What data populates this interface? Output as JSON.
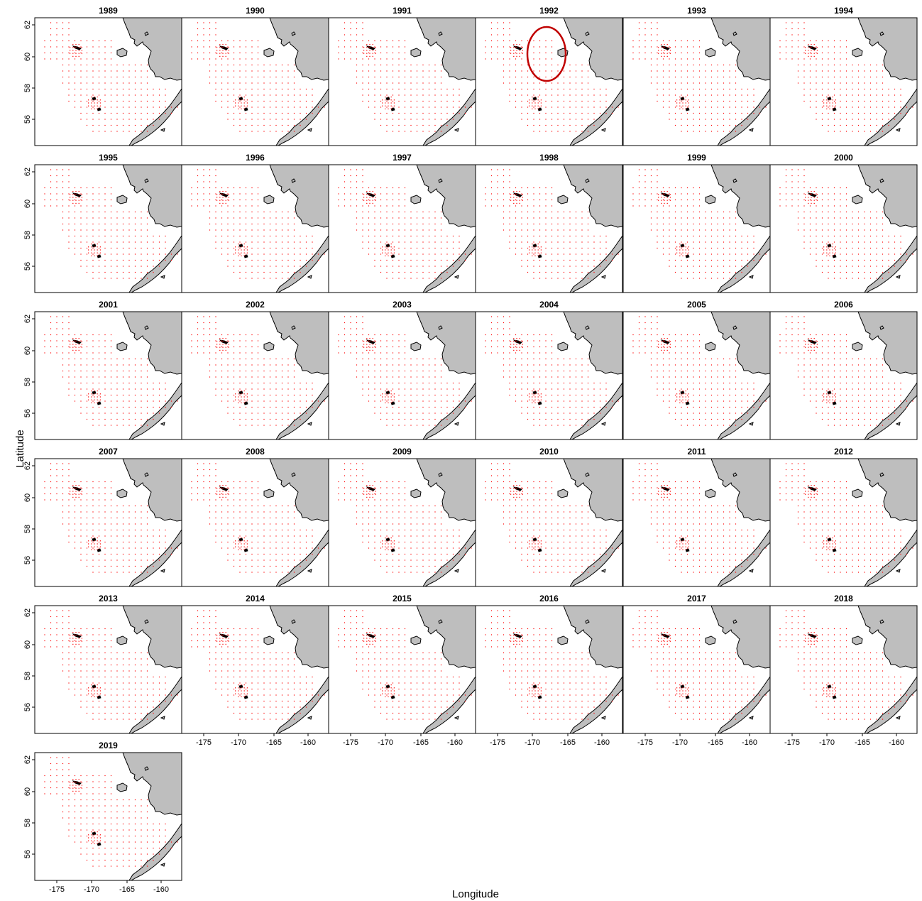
{
  "figure": {
    "x_axis_label": "Longitude",
    "y_axis_label": "Latitude",
    "x_ticks": [
      "-175",
      "-170",
      "-165",
      "-160"
    ],
    "y_ticks": [
      "62",
      "60",
      "58",
      "56"
    ],
    "land_color": "#bebebe",
    "station_color": "#ff0000",
    "highlight_color": "#c00000",
    "panels": [
      {
        "year": "1989"
      },
      {
        "year": "1990"
      },
      {
        "year": "1991"
      },
      {
        "year": "1992",
        "highlight": true
      },
      {
        "year": "1993"
      },
      {
        "year": "1994"
      },
      {
        "year": "1995"
      },
      {
        "year": "1996"
      },
      {
        "year": "1997"
      },
      {
        "year": "1998"
      },
      {
        "year": "1999"
      },
      {
        "year": "2000"
      },
      {
        "year": "2001"
      },
      {
        "year": "2002"
      },
      {
        "year": "2003"
      },
      {
        "year": "2004"
      },
      {
        "year": "2005"
      },
      {
        "year": "2006"
      },
      {
        "year": "2007"
      },
      {
        "year": "2008"
      },
      {
        "year": "2009"
      },
      {
        "year": "2010"
      },
      {
        "year": "2011"
      },
      {
        "year": "2012"
      },
      {
        "year": "2013"
      },
      {
        "year": "2014"
      },
      {
        "year": "2015"
      },
      {
        "year": "2016"
      },
      {
        "year": "2017"
      },
      {
        "year": "2018"
      },
      {
        "year": "2019"
      }
    ]
  }
}
